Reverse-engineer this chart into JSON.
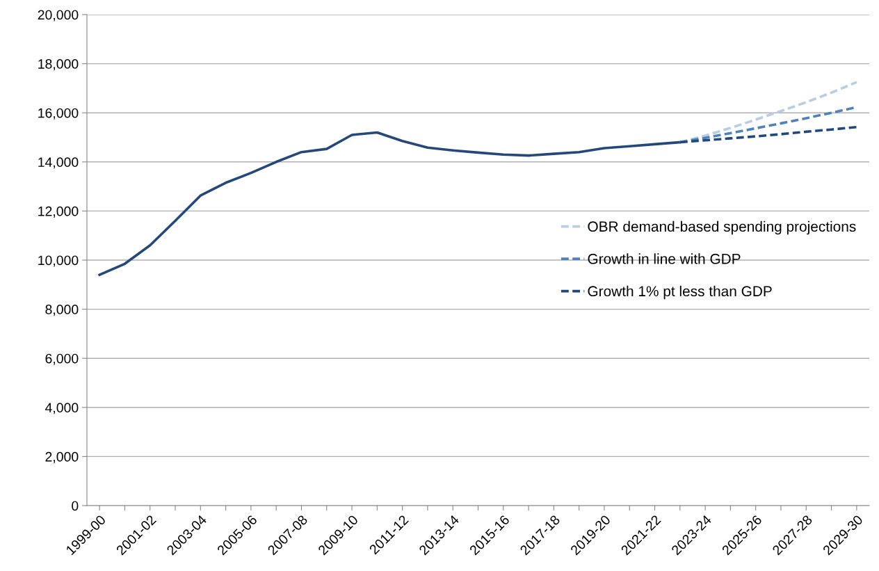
{
  "chart_data": {
    "type": "line",
    "categories": [
      "1999-00",
      null,
      "2001-02",
      null,
      "2003-04",
      null,
      "2005-06",
      null,
      "2007-08",
      null,
      "2009-10",
      null,
      "2011-12",
      null,
      "2013-14",
      null,
      "2015-16",
      null,
      "2017-18",
      null,
      "2019-20",
      null,
      "2021-22",
      null,
      "2023-24",
      null,
      "2025-26",
      null,
      "2027-28",
      null,
      "2029-30"
    ],
    "series": [
      {
        "color": "#24487c",
        "line_style": "solid",
        "values": [
          9400,
          9850,
          10600,
          11600,
          12630,
          13150,
          13550,
          14000,
          14400,
          14530,
          15100,
          15200,
          14850,
          14580,
          14470,
          14380,
          14300,
          14260,
          14330,
          14400,
          14560,
          14640,
          14720,
          14800,
          null,
          null,
          null,
          null,
          null,
          null,
          null
        ]
      },
      {
        "name": "OBR demand-based spending projections",
        "color": "#b9cde5",
        "line_style": "dashed",
        "values": [
          null,
          null,
          null,
          null,
          null,
          null,
          null,
          null,
          null,
          null,
          null,
          null,
          null,
          null,
          null,
          null,
          null,
          null,
          null,
          null,
          null,
          null,
          null,
          14800,
          15070,
          15380,
          15720,
          16070,
          16430,
          16820,
          17250
        ]
      },
      {
        "name": "Growth in line with GDP",
        "color": "#4f81bd",
        "line_style": "dashed",
        "values": [
          null,
          null,
          null,
          null,
          null,
          null,
          null,
          null,
          null,
          null,
          null,
          null,
          null,
          null,
          null,
          null,
          null,
          null,
          null,
          null,
          null,
          null,
          null,
          14800,
          14980,
          15170,
          15370,
          15570,
          15780,
          16000,
          16230
        ]
      },
      {
        "name": "Growth 1% pt less than GDP",
        "color": "#1f497d",
        "line_style": "dashed",
        "values": [
          null,
          null,
          null,
          null,
          null,
          null,
          null,
          null,
          null,
          null,
          null,
          null,
          null,
          null,
          null,
          null,
          null,
          null,
          null,
          null,
          null,
          null,
          null,
          14800,
          14880,
          14960,
          15040,
          15130,
          15230,
          15320,
          15420
        ]
      }
    ],
    "ylim": [
      0,
      20000
    ],
    "yticks": [
      {
        "value": 0,
        "label": "0"
      },
      {
        "value": 2000,
        "label": "2,000"
      },
      {
        "value": 4000,
        "label": "4,000"
      },
      {
        "value": 6000,
        "label": "6,000"
      },
      {
        "value": 8000,
        "label": "8,000"
      },
      {
        "value": 10000,
        "label": "10,000"
      },
      {
        "value": 12000,
        "label": "12,000"
      },
      {
        "value": 14000,
        "label": "14,000"
      },
      {
        "value": 16000,
        "label": "16,000"
      },
      {
        "value": 18000,
        "label": "18,000"
      },
      {
        "value": 20000,
        "label": "20,000"
      }
    ],
    "grid": "y",
    "legend": "right",
    "marker": "none"
  }
}
